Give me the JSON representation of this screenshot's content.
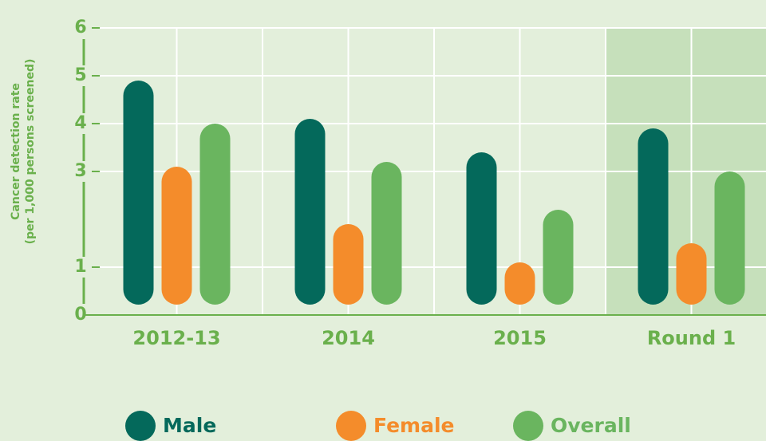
{
  "chart_data": {
    "type": "bar",
    "ylabel": [
      "Cancer detection rate",
      "(per 1,000 persons screened)"
    ],
    "categories": [
      "2012-13",
      "2014",
      "2015",
      "Round 1"
    ],
    "series": [
      {
        "name": "Male",
        "color": "#04695b",
        "values": [
          4.9,
          4.1,
          3.4,
          3.9
        ]
      },
      {
        "name": "Female",
        "color": "#f48c2b",
        "values": [
          3.1,
          1.9,
          1.1,
          1.5
        ]
      },
      {
        "name": "Overall",
        "color": "#6ab55f",
        "values": [
          4.0,
          3.2,
          2.2,
          3.0
        ]
      }
    ],
    "ylim": [
      0,
      6
    ],
    "yticks": [
      0,
      1,
      3,
      4,
      5,
      6
    ],
    "grid": true,
    "highlight": 3,
    "highlight_color": "#c6e0bb",
    "background": "#e3efdb",
    "axis_color": "#6ab04c"
  }
}
